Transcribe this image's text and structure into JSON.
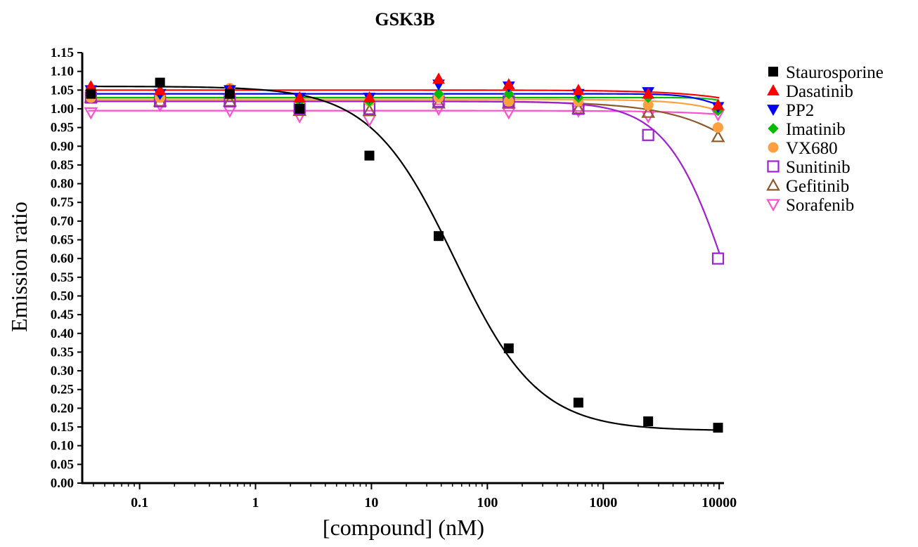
{
  "chart_data": {
    "type": "scatter",
    "title": "GSK3B",
    "xlabel": "[compound] (nM)",
    "ylabel": "Emission ratio",
    "x_scale": "log",
    "xlim": [
      0.032,
      11000
    ],
    "ylim": [
      0.0,
      1.15
    ],
    "x_ticks": [
      0.1,
      1,
      10,
      100,
      1000,
      10000
    ],
    "x_tick_labels": [
      "0.1",
      "1",
      "10",
      "100",
      "1000",
      "10000"
    ],
    "y_tick_labels": [
      "0.00",
      "0.05",
      "0.10",
      "0.15",
      "0.20",
      "0.25",
      "0.30",
      "0.35",
      "0.40",
      "0.45",
      "0.50",
      "0.55",
      "0.60",
      "0.65",
      "0.70",
      "0.75",
      "0.80",
      "0.85",
      "0.90",
      "0.95",
      "1.00",
      "1.05",
      "1.10",
      "1.15"
    ],
    "grid": false,
    "legend_position": "right",
    "x": [
      0.038,
      0.15,
      0.6,
      2.4,
      9.6,
      38,
      153,
      610,
      2440,
      9770
    ],
    "series": [
      {
        "name": "Staurosporine",
        "marker": "square-filled",
        "color": "#000000",
        "values": [
          1.04,
          1.07,
          1.04,
          1.0,
          0.875,
          0.66,
          0.36,
          0.215,
          0.165,
          0.148
        ],
        "fit": {
          "top": 1.06,
          "bottom": 0.14,
          "ec50": 52,
          "hill": 1.2
        }
      },
      {
        "name": "Dasatinib",
        "marker": "triangle-up-filled",
        "color": "#ff0000",
        "values": [
          1.06,
          1.05,
          1.05,
          1.03,
          1.03,
          1.08,
          1.065,
          1.05,
          1.04,
          1.01
        ],
        "fit": {
          "top": 1.05,
          "bottom": 0.0,
          "ec50": 500000,
          "hill": 1.0
        }
      },
      {
        "name": "PP2",
        "marker": "triangle-down-filled",
        "color": "#0000ff",
        "values": [
          1.05,
          1.04,
          1.05,
          1.03,
          1.03,
          1.065,
          1.06,
          1.04,
          1.045,
          1.005
        ],
        "fit": {
          "top": 1.04,
          "bottom": 0.98,
          "ec50": 10000,
          "hill": 3.0
        }
      },
      {
        "name": "Imatinib",
        "marker": "diamond-filled",
        "color": "#00bb00",
        "values": [
          1.055,
          1.04,
          1.04,
          1.02,
          1.02,
          1.04,
          1.04,
          1.03,
          1.03,
          0.995
        ],
        "fit": {
          "top": 1.03,
          "bottom": 0.9,
          "ec50": 20000,
          "hill": 4.0
        }
      },
      {
        "name": "VX680",
        "marker": "circle-filled",
        "color": "#ffa040",
        "values": [
          1.03,
          1.03,
          1.055,
          1.02,
          1.02,
          1.03,
          1.02,
          1.02,
          1.01,
          0.95
        ],
        "fit": {
          "top": 1.025,
          "bottom": 0.3,
          "ec50": 80000,
          "hill": 1.5
        }
      },
      {
        "name": "Sunitinib",
        "marker": "square-open",
        "color": "#a020d0",
        "values": [
          1.03,
          1.02,
          1.02,
          1.0,
          1.0,
          1.02,
          1.02,
          1.0,
          0.93,
          0.6
        ],
        "fit": {
          "top": 1.02,
          "bottom": 0.0,
          "ec50": 13000,
          "hill": 1.6
        }
      },
      {
        "name": "Gefitinib",
        "marker": "triangle-up-open",
        "color": "#8b5a2b",
        "values": [
          1.03,
          1.02,
          1.02,
          0.995,
          0.995,
          1.015,
          1.015,
          1.0,
          0.99,
          0.925
        ],
        "fit": {
          "top": 1.02,
          "bottom": 0.0,
          "ec50": 110000,
          "hill": 1.0
        }
      },
      {
        "name": "Sorafenib",
        "marker": "triangle-down-open",
        "color": "#ff50d0",
        "values": [
          0.99,
          1.01,
          0.995,
          0.98,
          0.97,
          1.0,
          0.99,
          0.995,
          0.98,
          0.985
        ],
        "fit": {
          "top": 0.995,
          "bottom": 0.0,
          "ec50": 1000000,
          "hill": 1.0
        }
      }
    ]
  }
}
